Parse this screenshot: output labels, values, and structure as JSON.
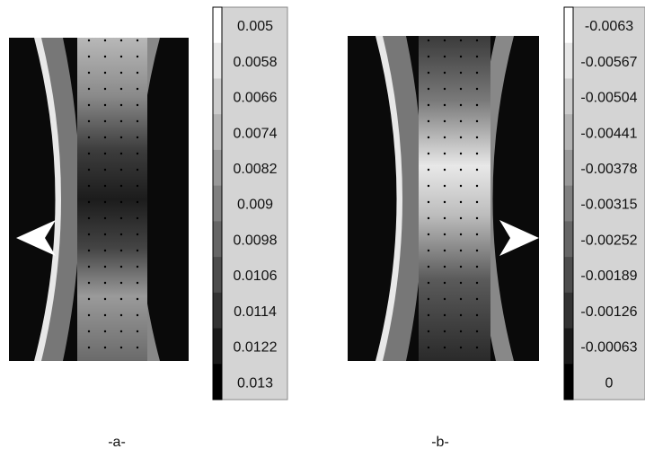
{
  "panels": [
    {
      "caption": "-a-",
      "scale_labels": [
        "0.005",
        "0.0058",
        "0.0066",
        "0.0074",
        "0.0082",
        "0.009",
        "0.0098",
        "0.0106",
        "0.0114",
        "0.0122",
        "0.013"
      ]
    },
    {
      "caption": "-b-",
      "scale_labels": [
        "-0.0063",
        "-0.00567",
        "-0.00504",
        "-0.00441",
        "-0.00378",
        "-0.00315",
        "-0.00252",
        "-0.00189",
        "-0.00126",
        "-0.00063",
        "0"
      ]
    }
  ]
}
